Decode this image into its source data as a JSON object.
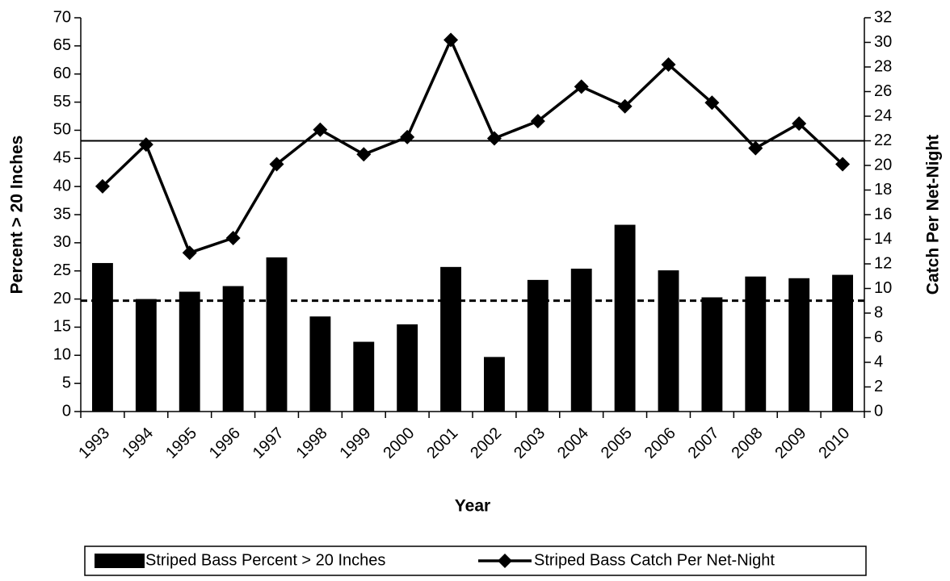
{
  "chart_data": {
    "type": "bar_line",
    "x_label": "Year",
    "y_label": "Percent > 20 Inches",
    "y2_label": "Catch Per Net-Night",
    "categories": [
      "1993",
      "1994",
      "1995",
      "1996",
      "1997",
      "1998",
      "1999",
      "2000",
      "2001",
      "2002",
      "2003",
      "2004",
      "2005",
      "2006",
      "2007",
      "2008",
      "2009",
      "2010"
    ],
    "series": [
      {
        "name": "Striped Bass Percent > 20 Inches",
        "type": "bar",
        "color": "#000000",
        "axis": "y",
        "values": [
          26.4,
          20.0,
          21.3,
          22.3,
          27.4,
          16.9,
          12.4,
          15.5,
          25.7,
          9.7,
          23.4,
          25.4,
          33.2,
          25.1,
          20.3,
          24.0,
          23.7,
          24.3
        ]
      },
      {
        "name": "Striped Bass Catch Per Net-Night",
        "type": "line",
        "color": "#000000",
        "axis": "y2",
        "values": [
          18.3,
          21.7,
          12.9,
          14.1,
          20.1,
          22.9,
          20.9,
          22.3,
          30.2,
          22.2,
          23.6,
          26.4,
          24.8,
          28.2,
          25.1,
          21.4,
          23.4,
          20.1
        ]
      }
    ],
    "reference_lines": [
      {
        "value": 22.0,
        "axis": "y2",
        "style": "solid"
      },
      {
        "value": 19.7,
        "axis": "y",
        "style": "dashed"
      }
    ],
    "ylim": [
      0,
      70
    ],
    "yticks": [
      0,
      5,
      10,
      15,
      20,
      25,
      30,
      35,
      40,
      45,
      50,
      55,
      60,
      65,
      70
    ],
    "y2lim": [
      0,
      32
    ],
    "y2ticks": [
      0,
      2,
      4,
      6,
      8,
      10,
      12,
      14,
      16,
      18,
      20,
      22,
      24,
      26,
      28,
      30,
      32
    ],
    "legend": "bottom"
  }
}
